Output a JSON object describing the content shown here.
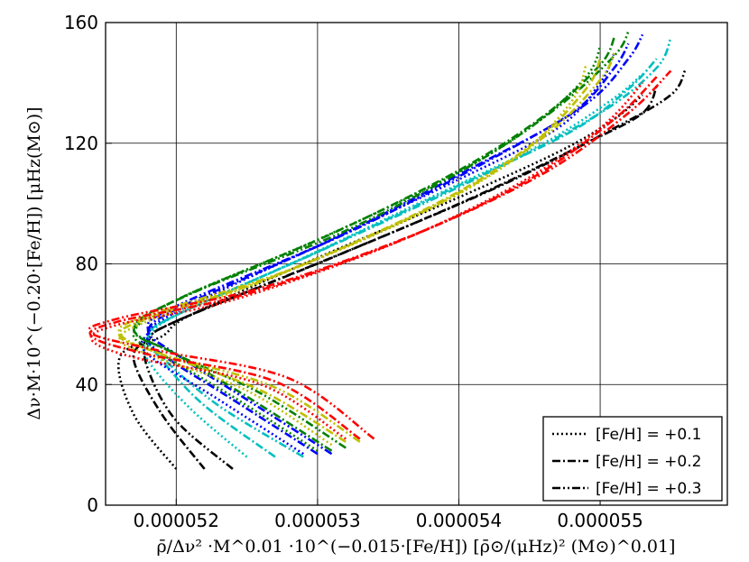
{
  "chart_data": {
    "type": "line",
    "title": "",
    "xlabel": "ρ̄/Δν² ·M^0.01 ·10^(−0.015·[Fe/H]) [ρ̄⊙/(μHz)² (M⊙)^0.01]",
    "ylabel": "Δν·M·10^(−0.20·[Fe/H]) [μHz(M⊙)]",
    "xlim": [
      5.15e-05,
      5.59e-05
    ],
    "ylim": [
      0,
      160
    ],
    "x_ticks": [
      "0.000052",
      "0.000053",
      "0.000054",
      "0.000055"
    ],
    "x_tick_values": [
      5.2e-05,
      5.3e-05,
      5.4e-05,
      5.5e-05
    ],
    "y_ticks": [
      "0",
      "40",
      "80",
      "120",
      "160"
    ],
    "y_tick_values": [
      0,
      40,
      80,
      120,
      160
    ],
    "grid": true,
    "legend_position": "bottom-right",
    "legend": [
      {
        "label": "[Fe/H] = +0.1",
        "dash": "dotted"
      },
      {
        "label": "[Fe/H] = +0.2",
        "dash": "dashdot"
      },
      {
        "label": "[Fe/H] = +0.3",
        "dash": "dashdotdot"
      }
    ],
    "colors": [
      "#000000",
      "#00bfbf",
      "#0000ff",
      "#008000",
      "#bfbf00",
      "#ff0000"
    ],
    "series": [
      {
        "color": "#000000",
        "dash": "dotted",
        "points": [
          [
            5.2e-05,
            12
          ],
          [
            5.17e-05,
            30
          ],
          [
            5.16e-05,
            49
          ],
          [
            5.19e-05,
            56
          ],
          [
            5.21e-05,
            63
          ],
          [
            5.3e-05,
            82
          ],
          [
            5.39e-05,
            100
          ],
          [
            5.47e-05,
            117
          ],
          [
            5.51e-05,
            128
          ],
          [
            5.53e-05,
            136
          ]
        ]
      },
      {
        "color": "#000000",
        "dash": "dashdot",
        "points": [
          [
            5.22e-05,
            12
          ],
          [
            5.19e-05,
            30
          ],
          [
            5.17e-05,
            48
          ],
          [
            5.18e-05,
            55
          ],
          [
            5.2e-05,
            61
          ],
          [
            5.31e-05,
            82
          ],
          [
            5.41e-05,
            102
          ],
          [
            5.49e-05,
            120
          ],
          [
            5.53e-05,
            130
          ],
          [
            5.54e-05,
            139
          ]
        ]
      },
      {
        "color": "#000000",
        "dash": "dashdotdot",
        "points": [
          [
            5.24e-05,
            12
          ],
          [
            5.2e-05,
            28
          ],
          [
            5.18e-05,
            45
          ],
          [
            5.18e-05,
            54
          ],
          [
            5.2e-05,
            61
          ],
          [
            5.32e-05,
            84
          ],
          [
            5.43e-05,
            106
          ],
          [
            5.51e-05,
            125
          ],
          [
            5.55e-05,
            136
          ],
          [
            5.56e-05,
            144
          ]
        ]
      },
      {
        "color": "#00bfbf",
        "dash": "dotted",
        "points": [
          [
            5.25e-05,
            16
          ],
          [
            5.21e-05,
            32
          ],
          [
            5.18e-05,
            48
          ],
          [
            5.18e-05,
            55
          ],
          [
            5.2e-05,
            63
          ],
          [
            5.29e-05,
            82
          ],
          [
            5.38e-05,
            102
          ],
          [
            5.46e-05,
            120
          ],
          [
            5.51e-05,
            135
          ],
          [
            5.53e-05,
            143
          ]
        ]
      },
      {
        "color": "#00bfbf",
        "dash": "dashdot",
        "points": [
          [
            5.27e-05,
            16
          ],
          [
            5.22e-05,
            33
          ],
          [
            5.19e-05,
            48
          ],
          [
            5.18e-05,
            56
          ],
          [
            5.2e-05,
            63
          ],
          [
            5.3e-05,
            84
          ],
          [
            5.4e-05,
            106
          ],
          [
            5.48e-05,
            124
          ],
          [
            5.52e-05,
            138
          ],
          [
            5.54e-05,
            148
          ]
        ]
      },
      {
        "color": "#00bfbf",
        "dash": "dashdotdot",
        "points": [
          [
            5.29e-05,
            16
          ],
          [
            5.23e-05,
            33
          ],
          [
            5.19e-05,
            49
          ],
          [
            5.18e-05,
            56
          ],
          [
            5.2e-05,
            63
          ],
          [
            5.31e-05,
            86
          ],
          [
            5.42e-05,
            110
          ],
          [
            5.5e-05,
            130
          ],
          [
            5.54e-05,
            145
          ],
          [
            5.55e-05,
            155
          ]
        ]
      },
      {
        "color": "#0000ff",
        "dash": "dotted",
        "points": [
          [
            5.29e-05,
            17
          ],
          [
            5.23e-05,
            35
          ],
          [
            5.18e-05,
            50
          ],
          [
            5.18e-05,
            57
          ],
          [
            5.2e-05,
            64
          ],
          [
            5.3e-05,
            86
          ],
          [
            5.4e-05,
            108
          ],
          [
            5.47e-05,
            125
          ],
          [
            5.5e-05,
            140
          ],
          [
            5.51e-05,
            150
          ]
        ]
      },
      {
        "color": "#0000ff",
        "dash": "dashdot",
        "points": [
          [
            5.3e-05,
            17
          ],
          [
            5.24e-05,
            35
          ],
          [
            5.19e-05,
            50
          ],
          [
            5.18e-05,
            57
          ],
          [
            5.2e-05,
            65
          ],
          [
            5.31e-05,
            88
          ],
          [
            5.41e-05,
            112
          ],
          [
            5.48e-05,
            130
          ],
          [
            5.51e-05,
            145
          ],
          [
            5.52e-05,
            153
          ]
        ]
      },
      {
        "color": "#0000ff",
        "dash": "dashdotdot",
        "points": [
          [
            5.31e-05,
            17
          ],
          [
            5.25e-05,
            35
          ],
          [
            5.2e-05,
            50
          ],
          [
            5.18e-05,
            58
          ],
          [
            5.2e-05,
            66
          ],
          [
            5.32e-05,
            90
          ],
          [
            5.42e-05,
            114
          ],
          [
            5.49e-05,
            133
          ],
          [
            5.52e-05,
            148
          ],
          [
            5.53e-05,
            156
          ]
        ]
      },
      {
        "color": "#008000",
        "dash": "dotted",
        "points": [
          [
            5.3e-05,
            18
          ],
          [
            5.24e-05,
            36
          ],
          [
            5.19e-05,
            50
          ],
          [
            5.17e-05,
            57
          ],
          [
            5.2e-05,
            68
          ],
          [
            5.3e-05,
            88
          ],
          [
            5.39e-05,
            108
          ],
          [
            5.45e-05,
            125
          ],
          [
            5.49e-05,
            142
          ],
          [
            5.5e-05,
            152
          ]
        ]
      },
      {
        "color": "#008000",
        "dash": "dashdot",
        "points": [
          [
            5.31e-05,
            18
          ],
          [
            5.25e-05,
            36
          ],
          [
            5.2e-05,
            50
          ],
          [
            5.17e-05,
            58
          ],
          [
            5.2e-05,
            68
          ],
          [
            5.31e-05,
            90
          ],
          [
            5.4e-05,
            111
          ],
          [
            5.46e-05,
            129
          ],
          [
            5.5e-05,
            146
          ],
          [
            5.51e-05,
            155
          ]
        ]
      },
      {
        "color": "#008000",
        "dash": "dashdotdot",
        "points": [
          [
            5.32e-05,
            19
          ],
          [
            5.26e-05,
            37
          ],
          [
            5.2e-05,
            50
          ],
          [
            5.17e-05,
            59
          ],
          [
            5.21e-05,
            70
          ],
          [
            5.32e-05,
            91
          ],
          [
            5.41e-05,
            113
          ],
          [
            5.47e-05,
            132
          ],
          [
            5.51e-05,
            149
          ],
          [
            5.52e-05,
            157
          ]
        ]
      },
      {
        "color": "#bfbf00",
        "dash": "dotted",
        "points": [
          [
            5.31e-05,
            20
          ],
          [
            5.25e-05,
            38
          ],
          [
            5.18e-05,
            50
          ],
          [
            5.16e-05,
            55
          ],
          [
            5.18e-05,
            61
          ],
          [
            5.26e-05,
            74
          ],
          [
            5.37e-05,
            96
          ],
          [
            5.44e-05,
            115
          ],
          [
            5.48e-05,
            134
          ],
          [
            5.49e-05,
            146
          ]
        ]
      },
      {
        "color": "#bfbf00",
        "dash": "dashdot",
        "points": [
          [
            5.32e-05,
            21
          ],
          [
            5.26e-05,
            38
          ],
          [
            5.19e-05,
            50
          ],
          [
            5.16e-05,
            56
          ],
          [
            5.18e-05,
            62
          ],
          [
            5.27e-05,
            76
          ],
          [
            5.38e-05,
            99
          ],
          [
            5.45e-05,
            119
          ],
          [
            5.49e-05,
            138
          ],
          [
            5.5e-05,
            148
          ]
        ]
      },
      {
        "color": "#bfbf00",
        "dash": "dashdotdot",
        "points": [
          [
            5.33e-05,
            21
          ],
          [
            5.27e-05,
            39
          ],
          [
            5.19e-05,
            50
          ],
          [
            5.16e-05,
            57
          ],
          [
            5.18e-05,
            63
          ],
          [
            5.28e-05,
            78
          ],
          [
            5.39e-05,
            101
          ],
          [
            5.46e-05,
            122
          ],
          [
            5.5e-05,
            141
          ],
          [
            5.51e-05,
            150
          ]
        ]
      },
      {
        "color": "#ff0000",
        "dash": "dotted",
        "points": [
          [
            5.32e-05,
            22
          ],
          [
            5.26e-05,
            40
          ],
          [
            5.17e-05,
            49
          ],
          [
            5.14e-05,
            55
          ],
          [
            5.16e-05,
            60
          ],
          [
            5.24e-05,
            68
          ],
          [
            5.35e-05,
            86
          ],
          [
            5.44e-05,
            106
          ],
          [
            5.5e-05,
            125
          ],
          [
            5.53e-05,
            140
          ]
        ]
      },
      {
        "color": "#ff0000",
        "dash": "dashdot",
        "points": [
          [
            5.33e-05,
            22
          ],
          [
            5.27e-05,
            41
          ],
          [
            5.18e-05,
            50
          ],
          [
            5.14e-05,
            56
          ],
          [
            5.16e-05,
            61
          ],
          [
            5.25e-05,
            70
          ],
          [
            5.36e-05,
            88
          ],
          [
            5.45e-05,
            108
          ],
          [
            5.51e-05,
            128
          ],
          [
            5.54e-05,
            142
          ]
        ]
      },
      {
        "color": "#ff0000",
        "dash": "dashdotdot",
        "points": [
          [
            5.34e-05,
            22
          ],
          [
            5.28e-05,
            42
          ],
          [
            5.19e-05,
            51
          ],
          [
            5.14e-05,
            57
          ],
          [
            5.16e-05,
            62
          ],
          [
            5.26e-05,
            72
          ],
          [
            5.37e-05,
            90
          ],
          [
            5.46e-05,
            110
          ],
          [
            5.52e-05,
            130
          ],
          [
            5.55e-05,
            144
          ]
        ]
      }
    ]
  }
}
